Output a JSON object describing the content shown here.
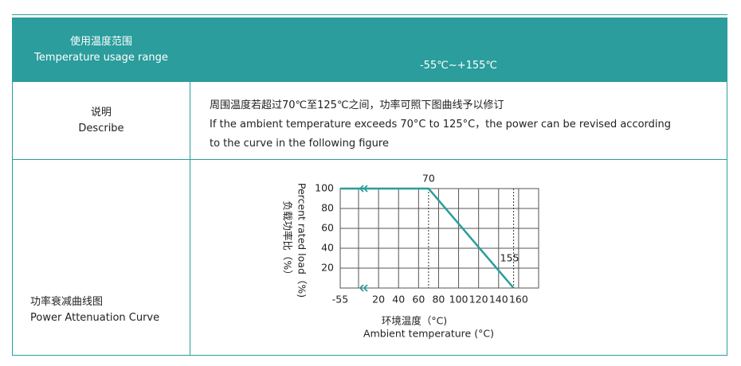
{
  "table": {
    "rows": [
      {
        "label_cn": "使用温度范围",
        "label_en": "Temperature usage range",
        "content": [
          "-55℃~+155℃"
        ]
      },
      {
        "label_cn": "说明",
        "label_en": "Describe",
        "content": [
          "周围温度若超过70℃至125℃之间，功率可照下图曲线予以修订",
          "If the ambient temperature exceeds 70°C to 125°C，the power can be revised according",
          "to the curve in the following figure"
        ]
      },
      {
        "label_cn": "功率衰减曲线图",
        "label_en": "Power Attenuation Curve",
        "content": []
      }
    ]
  },
  "chart_data": {
    "type": "line",
    "x_label": "环境温度（°C)",
    "x_label_en": "Ambient temperature (°C)",
    "y_label": "负载功率比（%）",
    "y_label_en": "Percent rated load（%)",
    "x": [
      -55,
      70,
      155
    ],
    "series": [
      {
        "color": "#2a9d9c",
        "values": [
          100,
          100,
          0
        ]
      }
    ],
    "annotations": [
      70,
      155
    ],
    "xlim": [
      -55,
      180
    ],
    "xticks": [
      -55,
      20,
      40,
      60,
      80,
      100,
      120,
      140,
      160
    ],
    "ylim": [
      0,
      100
    ],
    "yticks": [
      20,
      40,
      60,
      80,
      100
    ],
    "grid": true
  }
}
